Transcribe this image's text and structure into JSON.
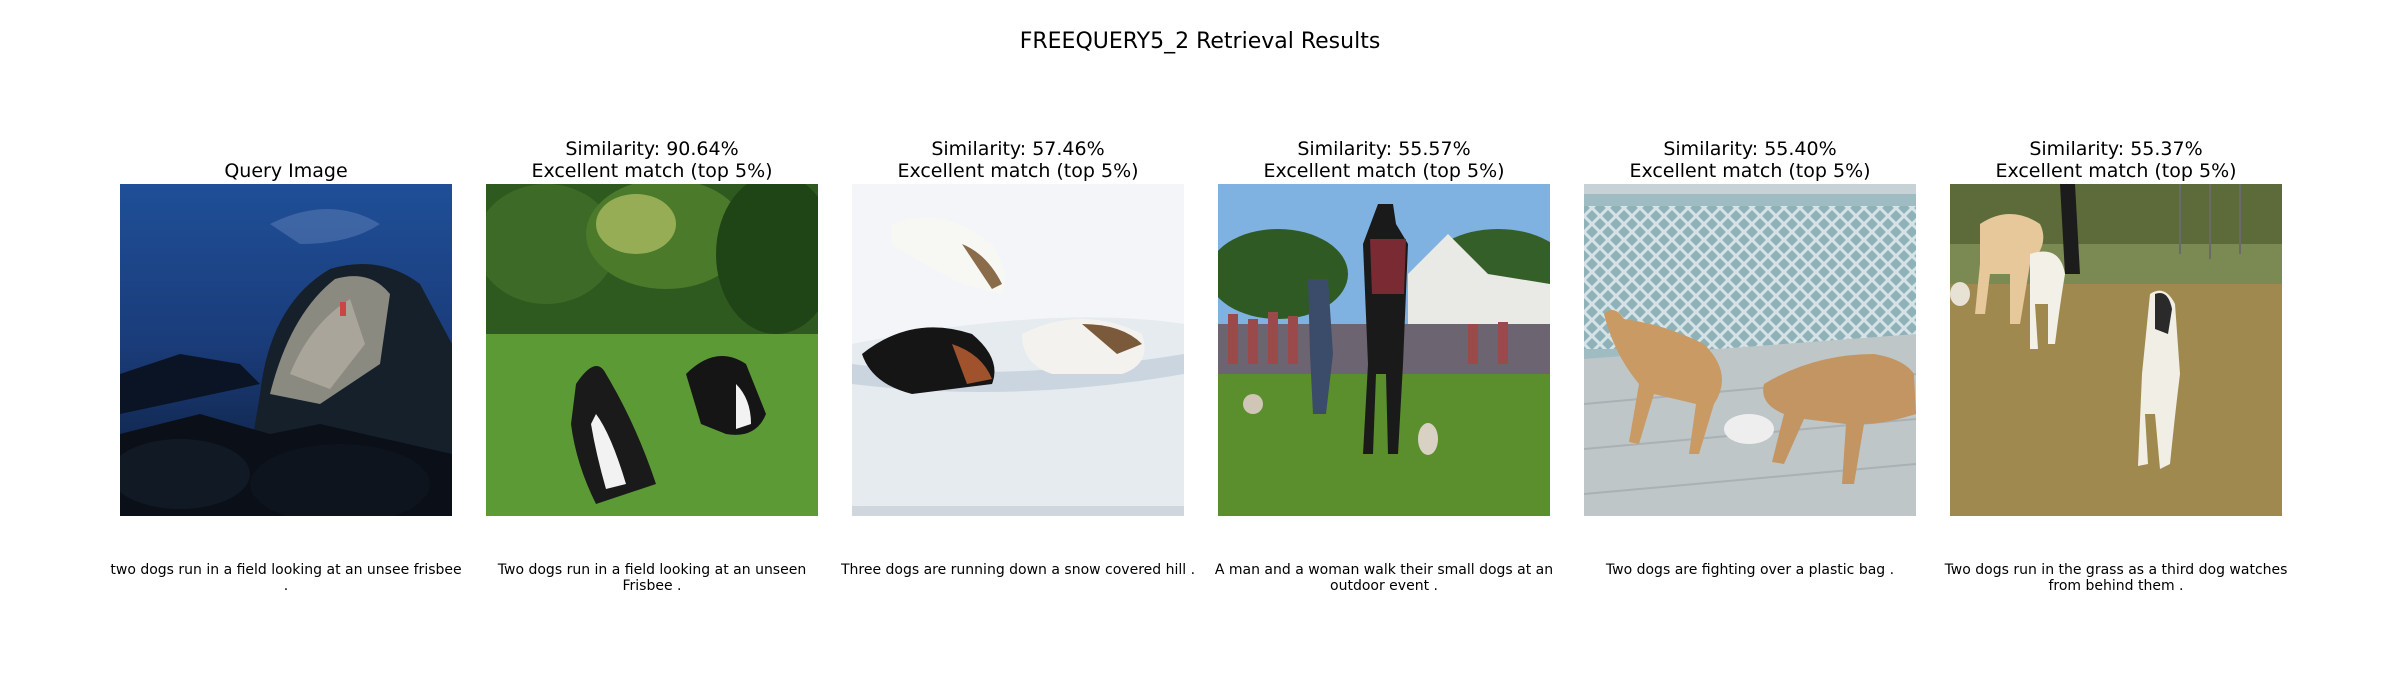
{
  "figure": {
    "title": "FREEQUERY5_2 Retrieval Results"
  },
  "panels": [
    {
      "title_line1": "",
      "title_line2": "Query Image",
      "caption": "two dogs run in a field looking at an unsee frisbee .",
      "image": "night-climber-on-boulder"
    },
    {
      "title_line1": "Similarity: 90.64%",
      "title_line2": "Excellent match (top 5%)",
      "caption": "Two dogs run in a field looking at an unseen Frisbee .",
      "image": "two-border-collies-in-grass"
    },
    {
      "title_line1": "Similarity: 57.46%",
      "title_line2": "Excellent match (top 5%)",
      "caption": "Three dogs are running down a snow covered hill .",
      "image": "dogs-running-in-snow"
    },
    {
      "title_line1": "Similarity: 55.57%",
      "title_line2": "Excellent match (top 5%)",
      "caption": "A man and a woman walk their small dogs at an outdoor event .",
      "image": "people-and-dogs-at-outdoor-event"
    },
    {
      "title_line1": "Similarity: 55.40%",
      "title_line2": "Excellent match (top 5%)",
      "caption": "Two dogs are fighting over a plastic bag .",
      "image": "two-dogs-on-deck-with-bag"
    },
    {
      "title_line1": "Similarity: 55.37%",
      "title_line2": "Excellent match (top 5%)",
      "caption": "Two dogs run in the grass as a third dog watches from behind them .",
      "image": "borzoi-dogs-on-grass"
    }
  ]
}
